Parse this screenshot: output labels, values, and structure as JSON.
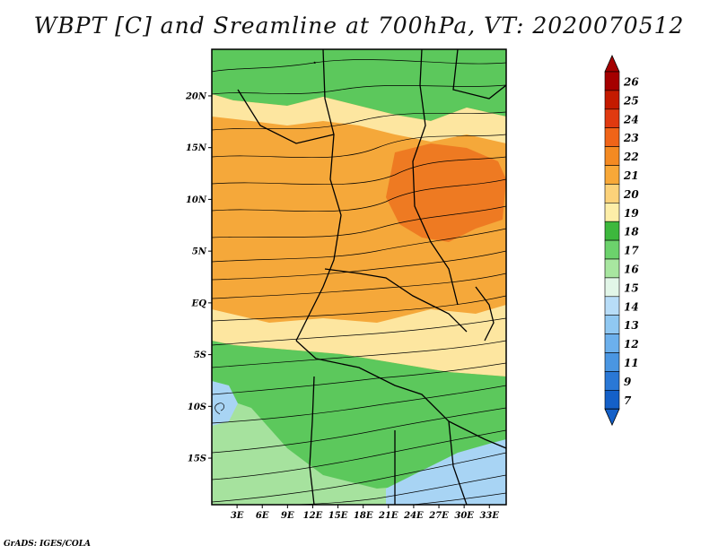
{
  "title": "WBPT [C] and Sreamline at 700hPa, VT: 2020070512",
  "credit": "GrADS: IGES/COLA",
  "map": {
    "lat_labels": [
      "20N",
      "15N",
      "10N",
      "5N",
      "EQ",
      "5S",
      "10S",
      "15S"
    ],
    "lat_values": [
      20,
      15,
      10,
      5,
      0,
      -5,
      -10,
      -15
    ],
    "lon_labels": [
      "3E",
      "6E",
      "9E",
      "12E",
      "15E",
      "18E",
      "21E",
      "24E",
      "27E",
      "30E",
      "33E"
    ],
    "lon_values": [
      3,
      6,
      9,
      12,
      15,
      18,
      21,
      24,
      27,
      30,
      33
    ],
    "lat_range": [
      -19.5,
      24.5
    ],
    "lon_range": [
      0,
      35
    ]
  },
  "colorbar": {
    "labels": [
      "26",
      "25",
      "24",
      "23",
      "22",
      "21",
      "20",
      "19",
      "18",
      "17",
      "16",
      "15",
      "14",
      "13",
      "12",
      "11",
      "9",
      "7"
    ],
    "colors": [
      "#a50000",
      "#c41a00",
      "#e03a10",
      "#f06418",
      "#f48a22",
      "#f8a838",
      "#fcd27a",
      "#fdeea8",
      "#3db83d",
      "#6cd26c",
      "#a8e6a0",
      "#e2f6e8",
      "#b8ddf8",
      "#90c8f2",
      "#6cb0ec",
      "#4a96e2",
      "#2a78d6",
      "#1460c8"
    ]
  },
  "regions": {
    "green": "#5cc85c",
    "light_green": "#a6e29e",
    "orange": "#f5a83a",
    "dark_orange": "#ee7a22",
    "light_yellow": "#fde6a0",
    "light_blue": "#a8d4f4"
  }
}
